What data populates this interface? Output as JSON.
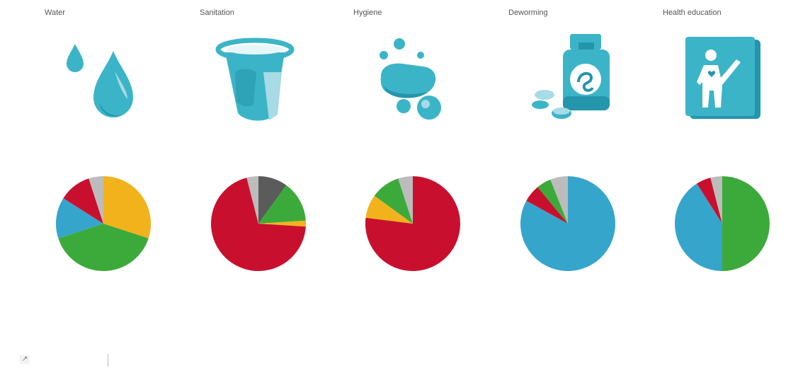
{
  "colors": {
    "icon_main": "#3cb4c8",
    "icon_dark": "#2496ab",
    "icon_light": "#a7dbe5",
    "icon_white": "#ffffff"
  },
  "footer": {
    "corner_glyph": "↗"
  },
  "chart_data": [
    {
      "type": "pie",
      "title": "Water",
      "icon": "water-drops",
      "slices": [
        {
          "value": 30,
          "color": "#f2b21c"
        },
        {
          "value": 40,
          "color": "#3caa3a"
        },
        {
          "value": 14,
          "color": "#36a5cc"
        },
        {
          "value": 11,
          "color": "#c8102e"
        },
        {
          "value": 5,
          "color": "#bcbcbc"
        }
      ]
    },
    {
      "type": "pie",
      "title": "Sanitation",
      "icon": "latrine-toilet",
      "slices": [
        {
          "value": 10,
          "color": "#5b5b5b"
        },
        {
          "value": 14,
          "color": "#3caa3a"
        },
        {
          "value": 2,
          "color": "#f2b21c"
        },
        {
          "value": 70,
          "color": "#c8102e"
        },
        {
          "value": 4,
          "color": "#bcbcbc"
        }
      ]
    },
    {
      "type": "pie",
      "title": "Hygiene",
      "icon": "soap-bubbles",
      "slices": [
        {
          "value": 77,
          "color": "#c8102e"
        },
        {
          "value": 8,
          "color": "#f2b21c"
        },
        {
          "value": 10,
          "color": "#3caa3a"
        },
        {
          "value": 5,
          "color": "#bcbcbc"
        }
      ]
    },
    {
      "type": "pie",
      "title": "Deworming",
      "icon": "medicine-bottle",
      "slices": [
        {
          "value": 83,
          "color": "#36a5cc"
        },
        {
          "value": 6,
          "color": "#c8102e"
        },
        {
          "value": 5,
          "color": "#3caa3a"
        },
        {
          "value": 6,
          "color": "#bcbcbc"
        }
      ]
    },
    {
      "type": "pie",
      "title": "Health education",
      "icon": "health-book",
      "slices": [
        {
          "value": 50,
          "color": "#3caa3a"
        },
        {
          "value": 41,
          "color": "#36a5cc"
        },
        {
          "value": 5,
          "color": "#c8102e"
        },
        {
          "value": 4,
          "color": "#bcbcbc"
        }
      ]
    }
  ]
}
